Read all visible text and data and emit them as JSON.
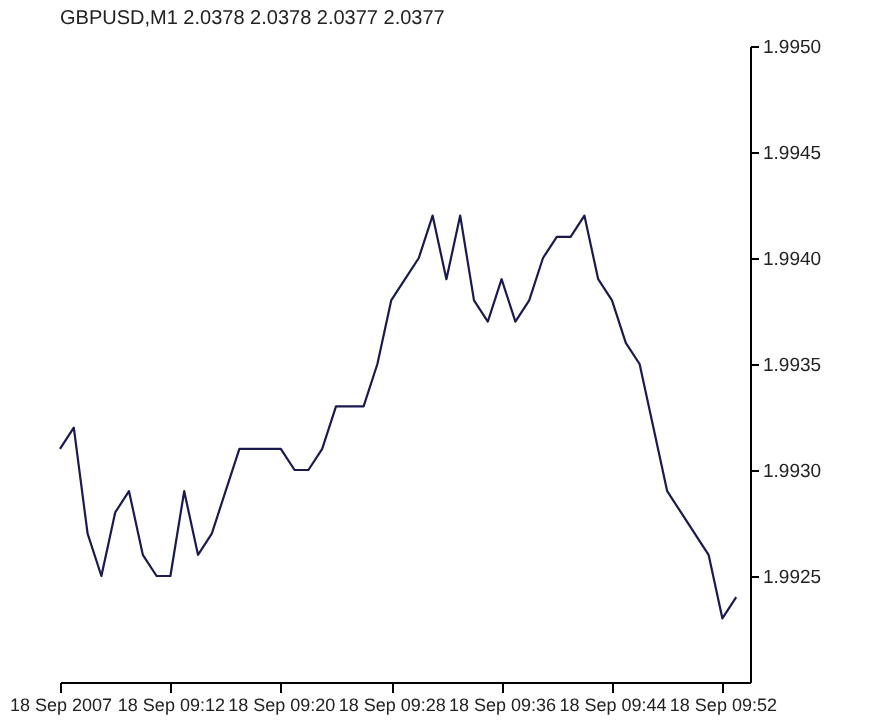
{
  "chart_data": {
    "type": "line",
    "title": "GBPUSD,M1  2.0378 2.0378 2.0377 2.0377",
    "x": [
      "2007-09-18T09:04",
      "2007-09-18T09:05",
      "2007-09-18T09:06",
      "2007-09-18T09:07",
      "2007-09-18T09:08",
      "2007-09-18T09:09",
      "2007-09-18T09:10",
      "2007-09-18T09:11",
      "2007-09-18T09:12",
      "2007-09-18T09:13",
      "2007-09-18T09:14",
      "2007-09-18T09:15",
      "2007-09-18T09:16",
      "2007-09-18T09:17",
      "2007-09-18T09:18",
      "2007-09-18T09:19",
      "2007-09-18T09:20",
      "2007-09-18T09:21",
      "2007-09-18T09:22",
      "2007-09-18T09:23",
      "2007-09-18T09:24",
      "2007-09-18T09:25",
      "2007-09-18T09:26",
      "2007-09-18T09:27",
      "2007-09-18T09:28",
      "2007-09-18T09:29",
      "2007-09-18T09:30",
      "2007-09-18T09:31",
      "2007-09-18T09:32",
      "2007-09-18T09:33",
      "2007-09-18T09:34",
      "2007-09-18T09:35",
      "2007-09-18T09:36",
      "2007-09-18T09:37",
      "2007-09-18T09:38",
      "2007-09-18T09:39",
      "2007-09-18T09:40",
      "2007-09-18T09:41",
      "2007-09-18T09:42",
      "2007-09-18T09:43",
      "2007-09-18T09:44",
      "2007-09-18T09:45",
      "2007-09-18T09:46",
      "2007-09-18T09:47",
      "2007-09-18T09:48",
      "2007-09-18T09:49",
      "2007-09-18T09:50",
      "2007-09-18T09:51",
      "2007-09-18T09:52",
      "2007-09-18T09:53"
    ],
    "series": [
      {
        "color": "#1a1a4e",
        "values": [
          1.9931,
          1.9932,
          1.9927,
          1.9925,
          1.9928,
          1.9929,
          1.9926,
          1.9925,
          1.9925,
          1.9929,
          1.9926,
          1.9927,
          1.9929,
          1.9931,
          1.9931,
          1.9931,
          1.9931,
          1.993,
          1.993,
          1.9931,
          1.9933,
          1.9933,
          1.9933,
          1.9935,
          1.9938,
          1.9939,
          1.994,
          1.9942,
          1.9939,
          1.9942,
          1.9938,
          1.9937,
          1.9939,
          1.9937,
          1.9938,
          1.994,
          1.9941,
          1.9941,
          1.9942,
          1.9939,
          1.9938,
          1.9936,
          1.9935,
          1.9932,
          1.9929,
          1.9928,
          1.9927,
          1.9926,
          1.9923,
          1.9924
        ]
      }
    ],
    "xlim": [
      "2007-09-18T09:04",
      "2007-09-18T09:54"
    ],
    "xticks": [
      {
        "value": "2007-09-18T09:04",
        "label": "18 Sep 2007"
      },
      {
        "value": "2007-09-18T09:12",
        "label": "18 Sep 09:12"
      },
      {
        "value": "2007-09-18T09:20",
        "label": "18 Sep 09:20"
      },
      {
        "value": "2007-09-18T09:28",
        "label": "18 Sep 09:28"
      },
      {
        "value": "2007-09-18T09:36",
        "label": "18 Sep 09:36"
      },
      {
        "value": "2007-09-18T09:44",
        "label": "18 Sep 09:44"
      },
      {
        "value": "2007-09-18T09:52",
        "label": "18 Sep 09:52"
      }
    ],
    "ylim": [
      1.992,
      1.995
    ],
    "yticks": [
      {
        "value": 1.9925,
        "label": "1.9925"
      },
      {
        "value": 1.993,
        "label": "1.9930"
      },
      {
        "value": 1.9935,
        "label": "1.9935"
      },
      {
        "value": 1.994,
        "label": "1.9940"
      },
      {
        "value": 1.9945,
        "label": "1.9945"
      },
      {
        "value": 1.995,
        "label": "1.9950"
      }
    ],
    "grid": false,
    "legend": false,
    "marker": "none",
    "line_style": "solid"
  }
}
